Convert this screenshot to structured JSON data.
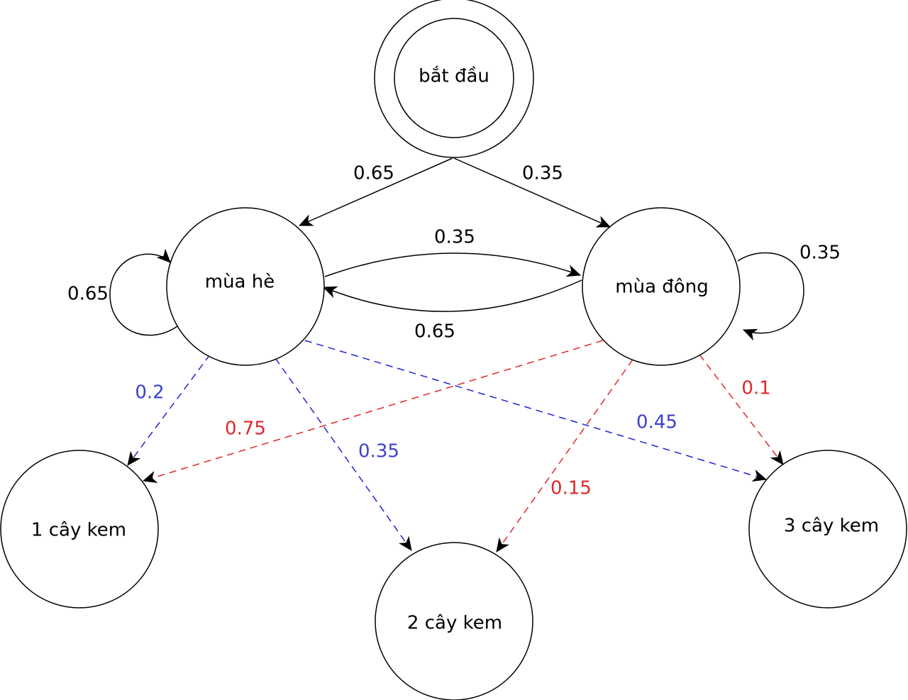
{
  "nodes": {
    "start": "bắt đầu",
    "summer": "mùa hè",
    "winter": "mùa đông",
    "one_icecream": "1 cây kem",
    "two_icecream": "2 cây kem",
    "three_icecream": "3 cây kem"
  },
  "edges": {
    "start_to_summer": "0.65",
    "start_to_winter": "0.35",
    "summer_to_winter": "0.35",
    "winter_to_summer": "0.65",
    "summer_self": "0.65",
    "winter_self": "0.35",
    "summer_to_one": "0.2",
    "summer_to_two": "0.35",
    "summer_to_three": "0.45",
    "winter_to_one": "0.75",
    "winter_to_two": "0.15",
    "winter_to_three": "0.1"
  },
  "colors": {
    "transition": "#000000",
    "summer_emission": "#3b3fd0",
    "winter_emission": "#e0262b"
  }
}
